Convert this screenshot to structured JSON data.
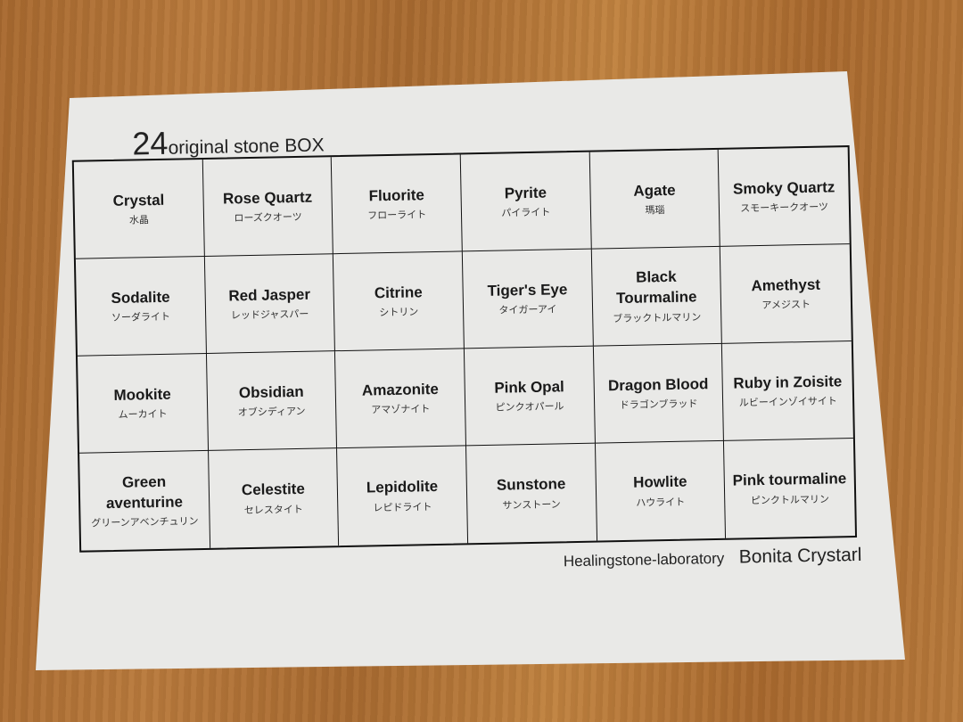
{
  "title": {
    "number": "24",
    "text": "original stone BOX"
  },
  "stones": [
    {
      "en": "Crystal",
      "ja": "水晶"
    },
    {
      "en": "Rose Quartz",
      "ja": "ローズクオーツ"
    },
    {
      "en": "Fluorite",
      "ja": "フローライト"
    },
    {
      "en": "Pyrite",
      "ja": "パイライト"
    },
    {
      "en": "Agate",
      "ja": "瑪瑙"
    },
    {
      "en": "Smoky Quartz",
      "ja": "スモーキークオーツ"
    },
    {
      "en": "Sodalite",
      "ja": "ソーダライト"
    },
    {
      "en": "Red Jasper",
      "ja": "レッドジャスパー"
    },
    {
      "en": "Citrine",
      "ja": "シトリン"
    },
    {
      "en": "Tiger's Eye",
      "ja": "タイガーアイ"
    },
    {
      "en": "Black Tourmaline",
      "ja": "ブラックトルマリン"
    },
    {
      "en": "Amethyst",
      "ja": "アメジスト"
    },
    {
      "en": "Mookite",
      "ja": "ムーカイト"
    },
    {
      "en": "Obsidian",
      "ja": "オブシディアン"
    },
    {
      "en": "Amazonite",
      "ja": "アマゾナイト"
    },
    {
      "en": "Pink Opal",
      "ja": "ピンクオパール"
    },
    {
      "en": "Dragon Blood",
      "ja": "ドラゴンブラッド"
    },
    {
      "en": "Ruby in Zoisite",
      "ja": "ルビーインゾイサイト"
    },
    {
      "en": "Green aventurine",
      "ja": "グリーンアベンチュリン"
    },
    {
      "en": "Celestite",
      "ja": "セレスタイト"
    },
    {
      "en": "Lepidolite",
      "ja": "レピドライト"
    },
    {
      "en": "Sunstone",
      "ja": "サンストーン"
    },
    {
      "en": "Howlite",
      "ja": "ハウライト"
    },
    {
      "en": "Pink tourmaline",
      "ja": "ピンクトルマリン"
    }
  ],
  "footer": {
    "lab": "Healingstone-laboratory",
    "brand": "Bonita Crystarl"
  }
}
